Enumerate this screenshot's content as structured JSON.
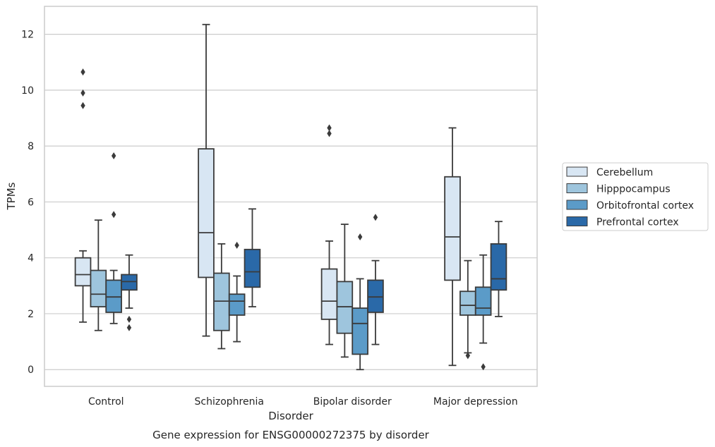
{
  "chart_data": {
    "type": "box",
    "xlabel": "Disorder",
    "ylabel": "TPMs",
    "caption": "Gene expression for ENSG00000272375 by disorder",
    "ylim": [
      -0.6,
      13.0
    ],
    "yticks": [
      0,
      2,
      4,
      6,
      8,
      10,
      12
    ],
    "grid": true,
    "legend_position": "right",
    "categories": [
      "Control",
      "Schizophrenia",
      "Bipolar disorder",
      "Major depression"
    ],
    "series": [
      {
        "name": "Cerebellum",
        "color": "#d8e6f3",
        "boxes": [
          {
            "whislo": 1.7,
            "q1": 3.0,
            "med": 3.4,
            "q3": 4.0,
            "whishi": 4.25,
            "fliers": [
              9.45,
              9.9,
              10.65
            ]
          },
          {
            "whislo": 1.2,
            "q1": 3.3,
            "med": 4.9,
            "q3": 7.9,
            "whishi": 12.35,
            "fliers": []
          },
          {
            "whislo": 0.9,
            "q1": 1.8,
            "med": 2.45,
            "q3": 3.6,
            "whishi": 4.6,
            "fliers": [
              8.45,
              8.65
            ]
          },
          {
            "whislo": 0.15,
            "q1": 3.2,
            "med": 4.75,
            "q3": 6.9,
            "whishi": 8.65,
            "fliers": []
          }
        ]
      },
      {
        "name": "Hipppocampus",
        "color": "#9ec5dd",
        "boxes": [
          {
            "whislo": 1.4,
            "q1": 2.25,
            "med": 2.7,
            "q3": 3.55,
            "whishi": 5.35,
            "fliers": []
          },
          {
            "whislo": 0.75,
            "q1": 1.4,
            "med": 2.45,
            "q3": 3.45,
            "whishi": 4.5,
            "fliers": []
          },
          {
            "whislo": 0.45,
            "q1": 1.3,
            "med": 2.25,
            "q3": 3.15,
            "whishi": 5.2,
            "fliers": []
          },
          {
            "whislo": 0.6,
            "q1": 1.95,
            "med": 2.3,
            "q3": 2.8,
            "whishi": 3.9,
            "fliers": [
              0.5
            ]
          }
        ]
      },
      {
        "name": "Orbitofrontal cortex",
        "color": "#5b9bc8",
        "boxes": [
          {
            "whislo": 1.65,
            "q1": 2.05,
            "med": 2.6,
            "q3": 3.2,
            "whishi": 3.55,
            "fliers": [
              5.55,
              7.65
            ]
          },
          {
            "whislo": 1.0,
            "q1": 1.95,
            "med": 2.45,
            "q3": 2.7,
            "whishi": 3.35,
            "fliers": [
              4.45
            ]
          },
          {
            "whislo": 0.0,
            "q1": 0.55,
            "med": 1.65,
            "q3": 2.2,
            "whishi": 3.25,
            "fliers": [
              4.75
            ]
          },
          {
            "whislo": 0.95,
            "q1": 1.95,
            "med": 2.2,
            "q3": 2.95,
            "whishi": 4.1,
            "fliers": [
              0.1
            ]
          }
        ]
      },
      {
        "name": "Prefrontal cortex",
        "color": "#2a69a8",
        "boxes": [
          {
            "whislo": 2.2,
            "q1": 2.85,
            "med": 3.15,
            "q3": 3.4,
            "whishi": 4.1,
            "fliers": [
              1.5,
              1.8
            ]
          },
          {
            "whislo": 2.25,
            "q1": 2.95,
            "med": 3.5,
            "q3": 4.3,
            "whishi": 5.75,
            "fliers": []
          },
          {
            "whislo": 0.9,
            "q1": 2.05,
            "med": 2.6,
            "q3": 3.2,
            "whishi": 3.9,
            "fliers": [
              5.45
            ]
          },
          {
            "whislo": 1.9,
            "q1": 2.85,
            "med": 3.25,
            "q3": 4.5,
            "whishi": 5.3,
            "fliers": []
          }
        ]
      }
    ]
  }
}
